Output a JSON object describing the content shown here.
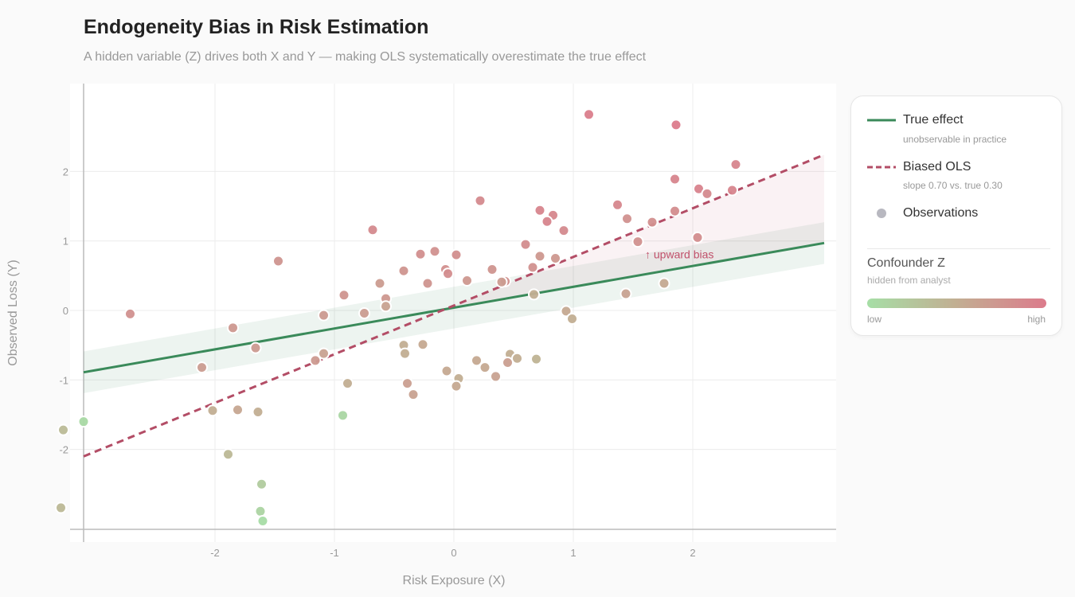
{
  "header": {
    "title": "Endogeneity Bias in Risk Estimation",
    "subtitle": "A hidden variable (Z) drives both X and Y — making OLS systematically overestimate the true effect"
  },
  "legend": {
    "true_label": "True effect",
    "true_note": "unobservable in practice",
    "ols_label": "Biased OLS",
    "ols_note": "slope 0.70 vs. true 0.30",
    "obs_label": "Observations",
    "confounder_title": "Confounder Z",
    "confounder_note": "hidden from analyst",
    "low_label": "low",
    "high_label": "high"
  },
  "colors": {
    "true_line": "#3a8a5a",
    "ols_line": "#b34d66",
    "observation": "#b8b8c0",
    "z_low": "#a6dea6",
    "z_mid": "#c2ae92",
    "z_high": "#dc7b8c"
  },
  "chart_data": {
    "type": "scatter",
    "xlabel": "Risk Exposure  (X)",
    "ylabel": "Observed Loss  (Y)",
    "xlim": [
      -3.1,
      3.1
    ],
    "ylim": [
      -3.15,
      3.15
    ],
    "x_ticks": [
      -2,
      -1,
      0,
      1,
      2
    ],
    "y_ticks": [
      -2,
      -1,
      0,
      1,
      2
    ],
    "x_tick_labels": [
      "-2",
      "-1",
      "0",
      "1",
      "2"
    ],
    "y_tick_labels": [
      "-2",
      "-1",
      "0",
      "1",
      "2"
    ],
    "grid": true,
    "annotation": "↑ upward bias",
    "annotation_at": {
      "x": 1.6,
      "y": 0.75
    },
    "true_effect": {
      "name": "True effect",
      "intercept": 0.04,
      "slope": 0.3,
      "band": 0.3
    },
    "biased_ols": {
      "name": "Biased OLS",
      "intercept": 0.07,
      "slope": 0.7
    },
    "series": [
      {
        "name": "Observations",
        "points": [
          {
            "x": 1.13,
            "y": 2.82,
            "z": 0.97
          },
          {
            "x": 1.86,
            "y": 2.67,
            "z": 1.0
          },
          {
            "x": 2.36,
            "y": 2.1,
            "z": 0.9
          },
          {
            "x": 1.85,
            "y": 1.89,
            "z": 0.9
          },
          {
            "x": 2.05,
            "y": 1.75,
            "z": 0.92
          },
          {
            "x": 2.12,
            "y": 1.68,
            "z": 0.85
          },
          {
            "x": 2.33,
            "y": 1.73,
            "z": 0.9
          },
          {
            "x": 1.37,
            "y": 1.52,
            "z": 0.88
          },
          {
            "x": 1.85,
            "y": 1.43,
            "z": 0.82
          },
          {
            "x": 1.45,
            "y": 1.32,
            "z": 0.78
          },
          {
            "x": 1.66,
            "y": 1.27,
            "z": 0.8
          },
          {
            "x": 2.04,
            "y": 1.05,
            "z": 0.82
          },
          {
            "x": 1.54,
            "y": 0.99,
            "z": 0.78
          },
          {
            "x": 0.22,
            "y": 1.58,
            "z": 0.85
          },
          {
            "x": 0.72,
            "y": 1.44,
            "z": 0.9
          },
          {
            "x": 0.83,
            "y": 1.37,
            "z": 0.88
          },
          {
            "x": 0.78,
            "y": 1.28,
            "z": 0.9
          },
          {
            "x": 0.92,
            "y": 1.15,
            "z": 0.85
          },
          {
            "x": -0.68,
            "y": 1.16,
            "z": 0.85
          },
          {
            "x": 0.6,
            "y": 0.95,
            "z": 0.82
          },
          {
            "x": -0.16,
            "y": 0.85,
            "z": 0.78
          },
          {
            "x": -0.28,
            "y": 0.81,
            "z": 0.8
          },
          {
            "x": 0.02,
            "y": 0.8,
            "z": 0.8
          },
          {
            "x": 0.72,
            "y": 0.78,
            "z": 0.72
          },
          {
            "x": 0.85,
            "y": 0.75,
            "z": 0.72
          },
          {
            "x": 0.66,
            "y": 0.62,
            "z": 0.78
          },
          {
            "x": 0.32,
            "y": 0.59,
            "z": 0.75
          },
          {
            "x": -0.07,
            "y": 0.59,
            "z": 0.8
          },
          {
            "x": -0.42,
            "y": 0.57,
            "z": 0.75
          },
          {
            "x": -0.05,
            "y": 0.53,
            "z": 0.82
          },
          {
            "x": -1.47,
            "y": 0.71,
            "z": 0.75
          },
          {
            "x": 0.11,
            "y": 0.43,
            "z": 0.72
          },
          {
            "x": 0.43,
            "y": 0.42,
            "z": 0.78
          },
          {
            "x": 0.4,
            "y": 0.41,
            "z": 0.68
          },
          {
            "x": -0.22,
            "y": 0.39,
            "z": 0.75
          },
          {
            "x": -0.62,
            "y": 0.39,
            "z": 0.68
          },
          {
            "x": 1.76,
            "y": 0.39,
            "z": 0.55
          },
          {
            "x": 1.44,
            "y": 0.24,
            "z": 0.62
          },
          {
            "x": 0.67,
            "y": 0.23,
            "z": 0.5
          },
          {
            "x": -0.92,
            "y": 0.22,
            "z": 0.75
          },
          {
            "x": -0.57,
            "y": 0.17,
            "z": 0.72
          },
          {
            "x": -0.57,
            "y": 0.06,
            "z": 0.62
          },
          {
            "x": -0.75,
            "y": -0.04,
            "z": 0.68
          },
          {
            "x": -1.09,
            "y": -0.07,
            "z": 0.7
          },
          {
            "x": 0.94,
            "y": -0.01,
            "z": 0.55
          },
          {
            "x": 0.99,
            "y": -0.12,
            "z": 0.5
          },
          {
            "x": -2.71,
            "y": -0.05,
            "z": 0.78
          },
          {
            "x": -1.85,
            "y": -0.25,
            "z": 0.72
          },
          {
            "x": -1.66,
            "y": -0.54,
            "z": 0.7
          },
          {
            "x": -0.42,
            "y": -0.5,
            "z": 0.5
          },
          {
            "x": -0.26,
            "y": -0.49,
            "z": 0.55
          },
          {
            "x": -0.41,
            "y": -0.62,
            "z": 0.5
          },
          {
            "x": 0.47,
            "y": -0.63,
            "z": 0.5
          },
          {
            "x": -1.09,
            "y": -0.62,
            "z": 0.62
          },
          {
            "x": -1.16,
            "y": -0.72,
            "z": 0.7
          },
          {
            "x": 0.19,
            "y": -0.72,
            "z": 0.55
          },
          {
            "x": 0.53,
            "y": -0.69,
            "z": 0.5
          },
          {
            "x": 0.69,
            "y": -0.7,
            "z": 0.45
          },
          {
            "x": 0.45,
            "y": -0.75,
            "z": 0.65
          },
          {
            "x": 0.26,
            "y": -0.82,
            "z": 0.55
          },
          {
            "x": -2.11,
            "y": -0.82,
            "z": 0.68
          },
          {
            "x": -0.06,
            "y": -0.87,
            "z": 0.55
          },
          {
            "x": 0.35,
            "y": -0.95,
            "z": 0.62
          },
          {
            "x": 0.04,
            "y": -0.98,
            "z": 0.5
          },
          {
            "x": -0.89,
            "y": -1.05,
            "z": 0.5
          },
          {
            "x": -0.39,
            "y": -1.05,
            "z": 0.65
          },
          {
            "x": 0.02,
            "y": -1.09,
            "z": 0.55
          },
          {
            "x": -0.34,
            "y": -1.21,
            "z": 0.62
          },
          {
            "x": -2.02,
            "y": -1.44,
            "z": 0.5
          },
          {
            "x": -1.81,
            "y": -1.43,
            "z": 0.58
          },
          {
            "x": -1.64,
            "y": -1.46,
            "z": 0.5
          },
          {
            "x": -0.93,
            "y": -1.51,
            "z": 0.08
          },
          {
            "x": -3.1,
            "y": -1.6,
            "z": 0.05
          },
          {
            "x": -3.27,
            "y": -1.72,
            "z": 0.38
          },
          {
            "x": -1.89,
            "y": -2.07,
            "z": 0.4
          },
          {
            "x": -1.61,
            "y": -2.5,
            "z": 0.2
          },
          {
            "x": -3.29,
            "y": -2.84,
            "z": 0.4
          },
          {
            "x": -1.62,
            "y": -2.89,
            "z": 0.1
          },
          {
            "x": -1.6,
            "y": -3.03,
            "z": 0.02
          }
        ]
      }
    ]
  }
}
